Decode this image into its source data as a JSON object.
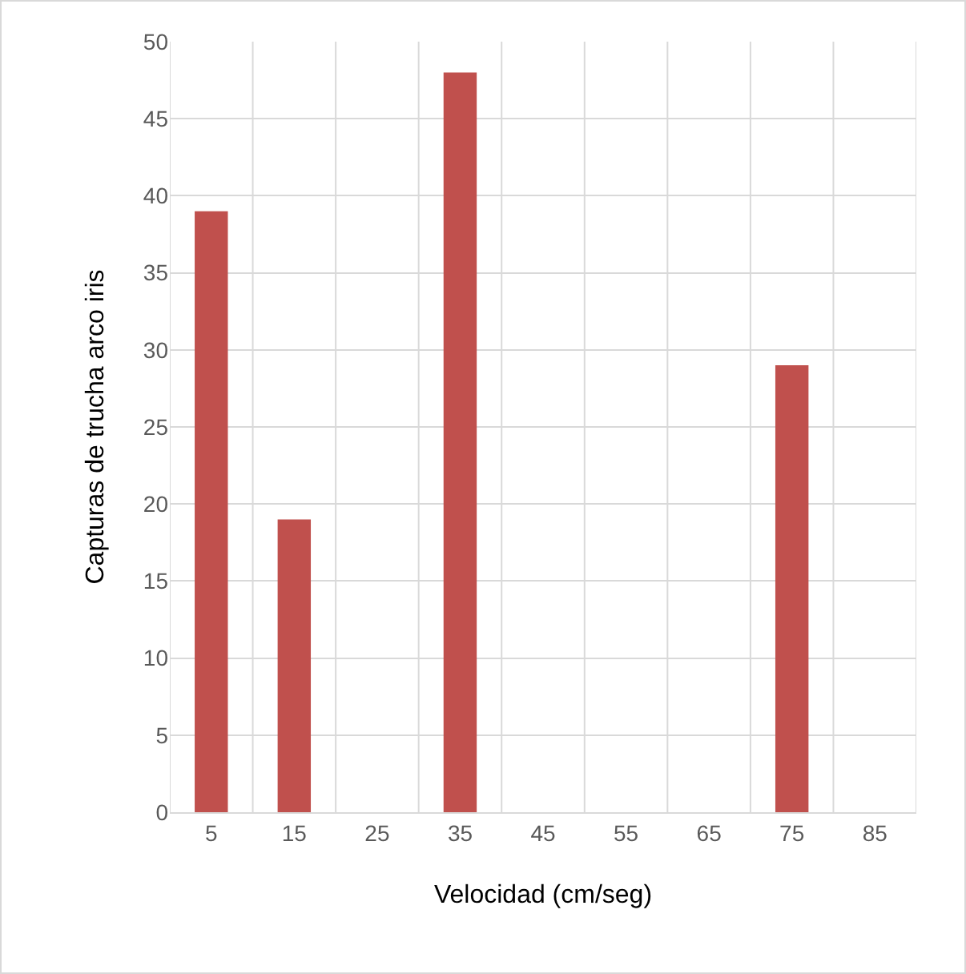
{
  "chart_data": {
    "type": "bar",
    "xlabel": "Velocidad (cm/seg)",
    "ylabel": "Capturas de trucha arco iris",
    "categories": [
      "5",
      "15",
      "25",
      "35",
      "45",
      "55",
      "65",
      "75",
      "85"
    ],
    "values": [
      39,
      19,
      0,
      48,
      0,
      0,
      0,
      29,
      0
    ],
    "color": "#c0504d",
    "ylim": [
      0,
      50
    ],
    "yticks": [
      0,
      5,
      10,
      15,
      20,
      25,
      30,
      35,
      40,
      45,
      50
    ],
    "grid": true
  }
}
